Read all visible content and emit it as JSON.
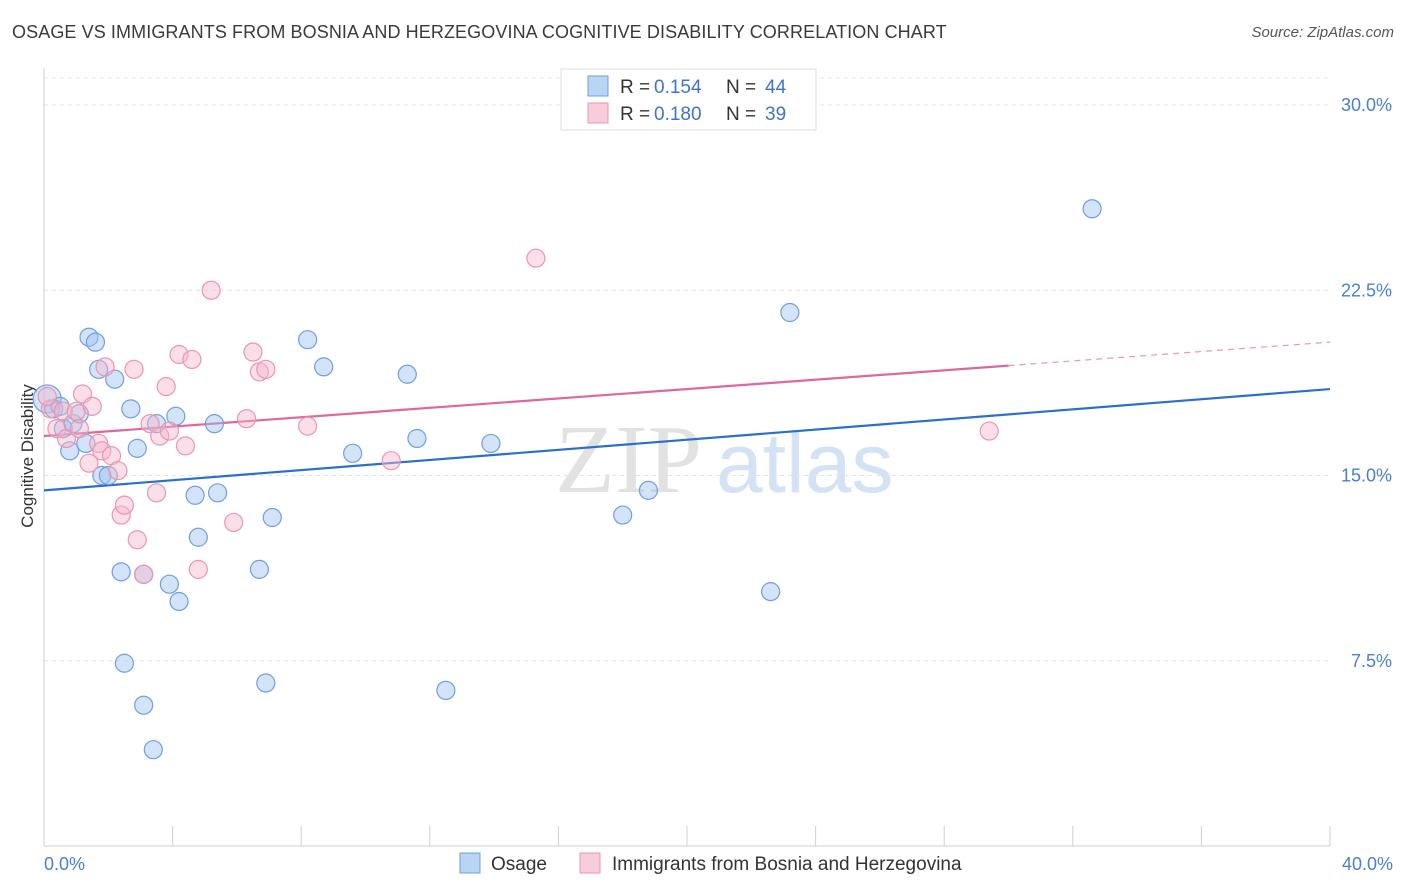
{
  "chart_data": {
    "type": "scatter",
    "title": "OSAGE VS IMMIGRANTS FROM BOSNIA AND HERZEGOVINA COGNITIVE DISABILITY CORRELATION CHART",
    "source": "Source: ZipAtlas.com",
    "ylabel": "Cognitive Disability",
    "xlabel": "",
    "xlim": [
      0,
      40
    ],
    "ylim": [
      0,
      31.5
    ],
    "x_tick_labels": [
      {
        "value": 0,
        "label": "0.0%"
      },
      {
        "value": 40,
        "label": "40.0%"
      }
    ],
    "y_tick_labels": [
      {
        "value": 7.5,
        "label": "7.5%"
      },
      {
        "value": 15,
        "label": "15.0%"
      },
      {
        "value": 22.5,
        "label": "22.5%"
      },
      {
        "value": 30,
        "label": "30.0%"
      }
    ],
    "watermark": {
      "part1": "ZIP",
      "part2": "atlas"
    },
    "legend_top": {
      "r_label": "R = ",
      "n_label": "N = ",
      "entries": [
        {
          "r": "0.154",
          "n": "44"
        },
        {
          "r": "0.180",
          "n": "39"
        }
      ]
    },
    "series": [
      {
        "name": "Osage",
        "color": "#9dc2ef",
        "stroke": "#6f9fdf",
        "line_color": "#2a6fcc",
        "trend": {
          "x0": 0,
          "y0": 14.4,
          "x1": 40,
          "y1": 18.5,
          "solid_until": 40
        },
        "points": [
          [
            0.1,
            18.1
          ],
          [
            0.3,
            17.7
          ],
          [
            0.5,
            17.8
          ],
          [
            0.6,
            16.9
          ],
          [
            0.8,
            16.0
          ],
          [
            0.9,
            17.1
          ],
          [
            1.1,
            17.5
          ],
          [
            1.3,
            16.3
          ],
          [
            1.4,
            20.6
          ],
          [
            1.6,
            20.4
          ],
          [
            1.7,
            19.3
          ],
          [
            1.8,
            15.0
          ],
          [
            2.0,
            15.0
          ],
          [
            2.2,
            18.9
          ],
          [
            2.4,
            11.1
          ],
          [
            2.5,
            7.4
          ],
          [
            2.7,
            17.7
          ],
          [
            2.9,
            16.1
          ],
          [
            3.1,
            11.0
          ],
          [
            3.1,
            5.7
          ],
          [
            3.4,
            3.9
          ],
          [
            3.5,
            17.1
          ],
          [
            3.9,
            10.6
          ],
          [
            4.1,
            17.4
          ],
          [
            4.2,
            9.9
          ],
          [
            4.7,
            14.2
          ],
          [
            4.8,
            12.5
          ],
          [
            5.3,
            17.1
          ],
          [
            5.4,
            14.3
          ],
          [
            6.7,
            11.2
          ],
          [
            6.9,
            6.6
          ],
          [
            7.1,
            13.3
          ],
          [
            8.2,
            20.5
          ],
          [
            8.7,
            19.4
          ],
          [
            9.6,
            15.9
          ],
          [
            11.3,
            19.1
          ],
          [
            11.6,
            16.5
          ],
          [
            12.5,
            6.3
          ],
          [
            13.9,
            16.3
          ],
          [
            18.0,
            13.4
          ],
          [
            18.8,
            14.4
          ],
          [
            22.6,
            10.3
          ],
          [
            23.2,
            21.6
          ],
          [
            32.6,
            25.8
          ]
        ]
      },
      {
        "name": "Immigrants from Bosnia and Herzegovina",
        "color": "#f5b8cc",
        "stroke": "#ec94b0",
        "line_color": "#e0679a",
        "trend": {
          "x0": 0,
          "y0": 16.6,
          "x1": 40,
          "y1": 20.4,
          "solid_until": 30.0
        },
        "points": [
          [
            0.2,
            17.7
          ],
          [
            0.4,
            16.9
          ],
          [
            0.6,
            17.6
          ],
          [
            0.7,
            16.5
          ],
          [
            1.0,
            17.6
          ],
          [
            1.1,
            16.9
          ],
          [
            1.2,
            18.3
          ],
          [
            1.4,
            15.5
          ],
          [
            1.5,
            17.8
          ],
          [
            1.7,
            16.3
          ],
          [
            1.8,
            16.0
          ],
          [
            1.9,
            19.4
          ],
          [
            2.1,
            15.8
          ],
          [
            2.3,
            15.2
          ],
          [
            2.4,
            13.4
          ],
          [
            2.5,
            13.8
          ],
          [
            2.8,
            19.3
          ],
          [
            2.9,
            12.4
          ],
          [
            3.1,
            11.0
          ],
          [
            3.3,
            17.1
          ],
          [
            3.5,
            14.3
          ],
          [
            3.6,
            16.6
          ],
          [
            3.8,
            18.6
          ],
          [
            3.9,
            16.8
          ],
          [
            4.2,
            19.9
          ],
          [
            4.4,
            16.2
          ],
          [
            4.6,
            19.7
          ],
          [
            4.8,
            11.2
          ],
          [
            5.2,
            22.5
          ],
          [
            5.9,
            13.1
          ],
          [
            6.3,
            17.3
          ],
          [
            6.5,
            20.0
          ],
          [
            6.7,
            19.2
          ],
          [
            6.9,
            19.3
          ],
          [
            8.2,
            17.0
          ],
          [
            10.8,
            15.6
          ],
          [
            15.3,
            23.8
          ],
          [
            29.4,
            16.8
          ],
          [
            0.1,
            18.2
          ]
        ]
      }
    ]
  }
}
